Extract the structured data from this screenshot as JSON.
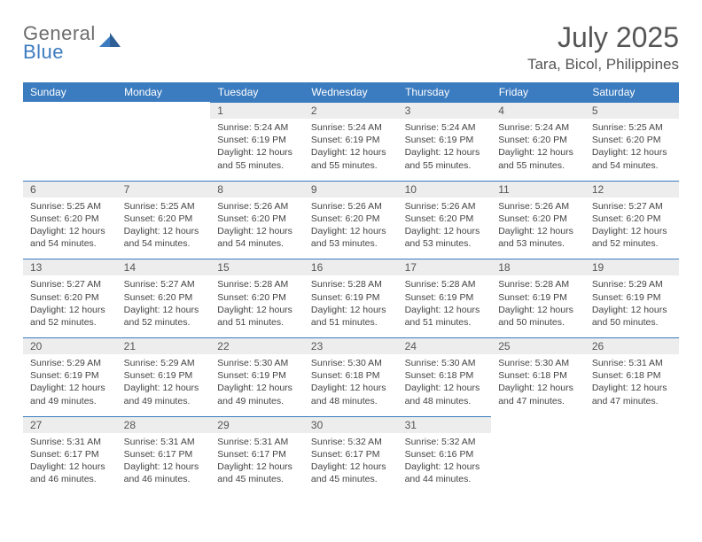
{
  "brand": {
    "line1": "General",
    "line2": "Blue"
  },
  "title": "July 2025",
  "location": "Tara, Bicol, Philippines",
  "colors": {
    "header_bg": "#3b7bbf",
    "header_text": "#ffffff",
    "daynum_bg": "#ededed",
    "daynum_border": "#3b7bbf",
    "text": "#555555",
    "body_text": "#444444",
    "logo_gray": "#6d6d6d",
    "logo_blue": "#3b7bbf",
    "page_bg": "#ffffff"
  },
  "typography": {
    "title_fontsize": 32,
    "location_fontsize": 17,
    "header_fontsize": 12,
    "daynum_fontsize": 12,
    "body_fontsize": 10.5
  },
  "columns": [
    "Sunday",
    "Monday",
    "Tuesday",
    "Wednesday",
    "Thursday",
    "Friday",
    "Saturday"
  ],
  "weeks": [
    [
      null,
      null,
      {
        "n": "1",
        "sr": "Sunrise: 5:24 AM",
        "ss": "Sunset: 6:19 PM",
        "dl": "Daylight: 12 hours and 55 minutes."
      },
      {
        "n": "2",
        "sr": "Sunrise: 5:24 AM",
        "ss": "Sunset: 6:19 PM",
        "dl": "Daylight: 12 hours and 55 minutes."
      },
      {
        "n": "3",
        "sr": "Sunrise: 5:24 AM",
        "ss": "Sunset: 6:19 PM",
        "dl": "Daylight: 12 hours and 55 minutes."
      },
      {
        "n": "4",
        "sr": "Sunrise: 5:24 AM",
        "ss": "Sunset: 6:20 PM",
        "dl": "Daylight: 12 hours and 55 minutes."
      },
      {
        "n": "5",
        "sr": "Sunrise: 5:25 AM",
        "ss": "Sunset: 6:20 PM",
        "dl": "Daylight: 12 hours and 54 minutes."
      }
    ],
    [
      {
        "n": "6",
        "sr": "Sunrise: 5:25 AM",
        "ss": "Sunset: 6:20 PM",
        "dl": "Daylight: 12 hours and 54 minutes."
      },
      {
        "n": "7",
        "sr": "Sunrise: 5:25 AM",
        "ss": "Sunset: 6:20 PM",
        "dl": "Daylight: 12 hours and 54 minutes."
      },
      {
        "n": "8",
        "sr": "Sunrise: 5:26 AM",
        "ss": "Sunset: 6:20 PM",
        "dl": "Daylight: 12 hours and 54 minutes."
      },
      {
        "n": "9",
        "sr": "Sunrise: 5:26 AM",
        "ss": "Sunset: 6:20 PM",
        "dl": "Daylight: 12 hours and 53 minutes."
      },
      {
        "n": "10",
        "sr": "Sunrise: 5:26 AM",
        "ss": "Sunset: 6:20 PM",
        "dl": "Daylight: 12 hours and 53 minutes."
      },
      {
        "n": "11",
        "sr": "Sunrise: 5:26 AM",
        "ss": "Sunset: 6:20 PM",
        "dl": "Daylight: 12 hours and 53 minutes."
      },
      {
        "n": "12",
        "sr": "Sunrise: 5:27 AM",
        "ss": "Sunset: 6:20 PM",
        "dl": "Daylight: 12 hours and 52 minutes."
      }
    ],
    [
      {
        "n": "13",
        "sr": "Sunrise: 5:27 AM",
        "ss": "Sunset: 6:20 PM",
        "dl": "Daylight: 12 hours and 52 minutes."
      },
      {
        "n": "14",
        "sr": "Sunrise: 5:27 AM",
        "ss": "Sunset: 6:20 PM",
        "dl": "Daylight: 12 hours and 52 minutes."
      },
      {
        "n": "15",
        "sr": "Sunrise: 5:28 AM",
        "ss": "Sunset: 6:20 PM",
        "dl": "Daylight: 12 hours and 51 minutes."
      },
      {
        "n": "16",
        "sr": "Sunrise: 5:28 AM",
        "ss": "Sunset: 6:19 PM",
        "dl": "Daylight: 12 hours and 51 minutes."
      },
      {
        "n": "17",
        "sr": "Sunrise: 5:28 AM",
        "ss": "Sunset: 6:19 PM",
        "dl": "Daylight: 12 hours and 51 minutes."
      },
      {
        "n": "18",
        "sr": "Sunrise: 5:28 AM",
        "ss": "Sunset: 6:19 PM",
        "dl": "Daylight: 12 hours and 50 minutes."
      },
      {
        "n": "19",
        "sr": "Sunrise: 5:29 AM",
        "ss": "Sunset: 6:19 PM",
        "dl": "Daylight: 12 hours and 50 minutes."
      }
    ],
    [
      {
        "n": "20",
        "sr": "Sunrise: 5:29 AM",
        "ss": "Sunset: 6:19 PM",
        "dl": "Daylight: 12 hours and 49 minutes."
      },
      {
        "n": "21",
        "sr": "Sunrise: 5:29 AM",
        "ss": "Sunset: 6:19 PM",
        "dl": "Daylight: 12 hours and 49 minutes."
      },
      {
        "n": "22",
        "sr": "Sunrise: 5:30 AM",
        "ss": "Sunset: 6:19 PM",
        "dl": "Daylight: 12 hours and 49 minutes."
      },
      {
        "n": "23",
        "sr": "Sunrise: 5:30 AM",
        "ss": "Sunset: 6:18 PM",
        "dl": "Daylight: 12 hours and 48 minutes."
      },
      {
        "n": "24",
        "sr": "Sunrise: 5:30 AM",
        "ss": "Sunset: 6:18 PM",
        "dl": "Daylight: 12 hours and 48 minutes."
      },
      {
        "n": "25",
        "sr": "Sunrise: 5:30 AM",
        "ss": "Sunset: 6:18 PM",
        "dl": "Daylight: 12 hours and 47 minutes."
      },
      {
        "n": "26",
        "sr": "Sunrise: 5:31 AM",
        "ss": "Sunset: 6:18 PM",
        "dl": "Daylight: 12 hours and 47 minutes."
      }
    ],
    [
      {
        "n": "27",
        "sr": "Sunrise: 5:31 AM",
        "ss": "Sunset: 6:17 PM",
        "dl": "Daylight: 12 hours and 46 minutes."
      },
      {
        "n": "28",
        "sr": "Sunrise: 5:31 AM",
        "ss": "Sunset: 6:17 PM",
        "dl": "Daylight: 12 hours and 46 minutes."
      },
      {
        "n": "29",
        "sr": "Sunrise: 5:31 AM",
        "ss": "Sunset: 6:17 PM",
        "dl": "Daylight: 12 hours and 45 minutes."
      },
      {
        "n": "30",
        "sr": "Sunrise: 5:32 AM",
        "ss": "Sunset: 6:17 PM",
        "dl": "Daylight: 12 hours and 45 minutes."
      },
      {
        "n": "31",
        "sr": "Sunrise: 5:32 AM",
        "ss": "Sunset: 6:16 PM",
        "dl": "Daylight: 12 hours and 44 minutes."
      },
      null,
      null
    ]
  ]
}
